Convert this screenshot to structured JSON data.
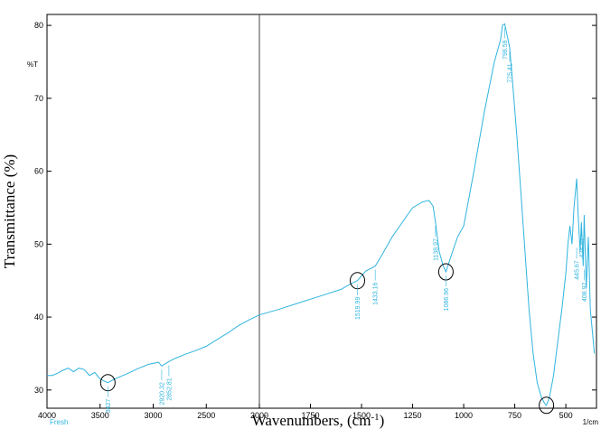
{
  "chart_data": {
    "type": "line",
    "xlabel": "Wavenumbers, (cm",
    "xlabel_sup": "-1",
    "xlabel_close": ")",
    "ylabel": "Transmittance (%)",
    "unit_label": "%T",
    "x_unit": "1/cm",
    "series_label": "Fresh",
    "xlim": [
      4000,
      350
    ],
    "ylim": [
      27.5,
      81.5
    ],
    "x_ticks": [
      4000,
      3500,
      3000,
      2500,
      2000,
      1750,
      1500,
      1250,
      1000,
      750,
      500
    ],
    "y_ticks": [
      30,
      40,
      50,
      60,
      70,
      80
    ],
    "grid": false,
    "line_color": "#2fb4de",
    "series": [
      {
        "name": "Fresh",
        "x": [
          4000,
          3950,
          3900,
          3850,
          3800,
          3750,
          3700,
          3650,
          3600,
          3550,
          3500,
          3427,
          3350,
          3250,
          3150,
          3050,
          2950,
          2920,
          2852,
          2800,
          2700,
          2600,
          2500,
          2400,
          2300,
          2200,
          2100,
          2000,
          1900,
          1800,
          1700,
          1600,
          1550,
          1520,
          1480,
          1433,
          1400,
          1350,
          1300,
          1250,
          1200,
          1170,
          1150,
          1138,
          1120,
          1100,
          1087,
          1060,
          1030,
          1000,
          950,
          900,
          850,
          820,
          810,
          799,
          790,
          775,
          760,
          740,
          720,
          700,
          680,
          660,
          640,
          620,
          605,
          595,
          580,
          560,
          540,
          520,
          500,
          490,
          480,
          470,
          460,
          447,
          440,
          430,
          424,
          415,
          410,
          400,
          390,
          380,
          370,
          360
        ],
        "y": [
          32.0,
          32.0,
          32.3,
          32.7,
          33.0,
          32.5,
          33.0,
          32.8,
          32.0,
          32.4,
          31.5,
          31.0,
          31.6,
          32.2,
          32.9,
          33.5,
          33.8,
          33.3,
          33.9,
          34.3,
          34.9,
          35.4,
          36.0,
          36.9,
          37.8,
          38.8,
          39.6,
          40.3,
          41.1,
          42.0,
          42.9,
          43.8,
          44.6,
          45.0,
          46.3,
          47.0,
          48.5,
          51.0,
          53.0,
          55.0,
          55.8,
          56.0,
          55.2,
          53.0,
          49.0,
          47.0,
          46.2,
          48.5,
          51.0,
          52.5,
          60.0,
          68.0,
          75.0,
          78.0,
          80.0,
          80.2,
          79.0,
          77.0,
          72.0,
          65.0,
          57.0,
          49.0,
          41.0,
          35.0,
          31.0,
          29.0,
          28.2,
          27.9,
          29.0,
          32.0,
          36.5,
          41.0,
          46.0,
          50.0,
          52.5,
          50.0,
          55.0,
          59.0,
          54.0,
          49.0,
          53.0,
          47.0,
          54.0,
          44.0,
          51.0,
          41.0,
          38.0,
          35.0
        ]
      }
    ],
    "annotations": [
      {
        "x": 3427,
        "y": 31.0,
        "text": "3427",
        "circled": true
      },
      {
        "x": 2920,
        "y": 33.3,
        "text": "2920.32",
        "circled": false
      },
      {
        "x": 2852,
        "y": 33.9,
        "text": "2852.81",
        "circled": false
      },
      {
        "x": 1520,
        "y": 45.0,
        "text": "1519.99",
        "circled": true
      },
      {
        "x": 1433,
        "y": 47.0,
        "text": "1433.16",
        "circled": false
      },
      {
        "x": 1138,
        "y": 53.0,
        "text": "1138.97",
        "circled": false
      },
      {
        "x": 1087,
        "y": 46.2,
        "text": "1086.96",
        "circled": true
      },
      {
        "x": 799,
        "y": 80.2,
        "text": "798.59",
        "circled": false
      },
      {
        "x": 775,
        "y": 77.0,
        "text": "775.41",
        "circled": false
      },
      {
        "x": 595,
        "y": 27.9,
        "text": "",
        "circled": true
      },
      {
        "x": 447,
        "y": 50.0,
        "text": "445.67",
        "circled": false
      },
      {
        "x": 424,
        "y": 53.0,
        "text": "424.35",
        "circled": false
      },
      {
        "x": 409,
        "y": 47.0,
        "text": "408.92",
        "circled": false
      }
    ]
  }
}
